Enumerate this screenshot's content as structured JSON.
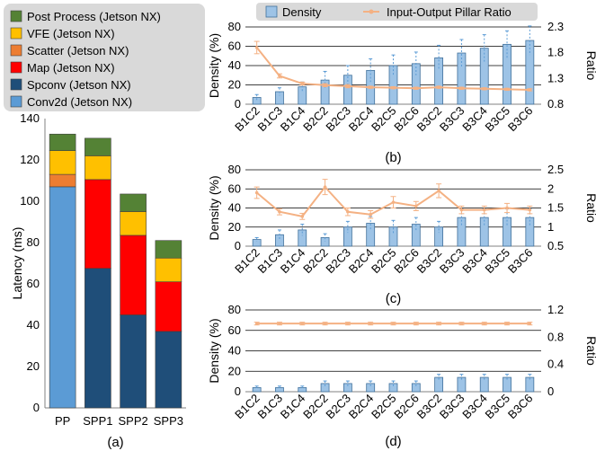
{
  "colors": {
    "conv2d": "#5b9bd5",
    "spconv": "#1f4e79",
    "map": "#ff0000",
    "scatter": "#ed7d31",
    "vfe": "#ffc000",
    "post": "#548235",
    "density_fill": "#9dc3e6",
    "density_edge": "#41719c",
    "ratio_line": "#f4b183",
    "errbar": "#5b9bd5",
    "legend_bg": "#d9d9d9"
  },
  "chart_data": [
    {
      "id": "a",
      "type": "bar",
      "stacked": true,
      "caption": "(a)",
      "ylabel": "Latency (ms)",
      "ylim": [
        0,
        140
      ],
      "yticks": [
        0,
        20,
        40,
        60,
        80,
        100,
        120,
        140
      ],
      "categories": [
        "PP",
        "SPP1",
        "SPP2",
        "SPP3"
      ],
      "legend_position": "top-left",
      "series": [
        {
          "name": "Conv2d (Jetson NX)",
          "color_key": "conv2d",
          "values": [
            107,
            0,
            0,
            0
          ]
        },
        {
          "name": "Spconv (Jetson NX)",
          "color_key": "spconv",
          "values": [
            0,
            67.5,
            45,
            37
          ]
        },
        {
          "name": "Map (Jetson NX)",
          "color_key": "map",
          "values": [
            0,
            43,
            38.5,
            24
          ]
        },
        {
          "name": "Scatter (Jetson NX)",
          "color_key": "scatter",
          "values": [
            6,
            0,
            0,
            0
          ]
        },
        {
          "name": "VFE (Jetson NX)",
          "color_key": "vfe",
          "values": [
            11.5,
            11.5,
            11.5,
            11.5
          ]
        },
        {
          "name": "Post Process (Jetson NX)",
          "color_key": "post",
          "values": [
            8,
            8.5,
            8.5,
            8.5
          ]
        }
      ]
    },
    {
      "id": "b",
      "type": "bar",
      "caption": "(b)",
      "ylabel": "Density (%)",
      "ylim": [
        0,
        80
      ],
      "yticks": [
        0,
        20,
        40,
        60,
        80
      ],
      "y2label": "Ratio",
      "y2lim": [
        0.8,
        2.3
      ],
      "y2ticks": [
        "0.8",
        "1.3",
        "1.8",
        "2.3"
      ],
      "legend_position": "top",
      "categories": [
        "B1C2",
        "B1C3",
        "B1C4",
        "B2C2",
        "B2C3",
        "B2C4",
        "B2C5",
        "B2C6",
        "B3C2",
        "B3C3",
        "B3C4",
        "B3C5",
        "B3C6"
      ],
      "density": {
        "name": "Density",
        "values": [
          7,
          13,
          18,
          25,
          30,
          35,
          40,
          42,
          48,
          53,
          58,
          62,
          66
        ],
        "errors": [
          3,
          4,
          5,
          9,
          10,
          12,
          11,
          12,
          13,
          14,
          14,
          14,
          15
        ]
      },
      "ratio": {
        "name": "Input-Output Pillar Ratio",
        "values": [
          1.9,
          1.35,
          1.2,
          1.17,
          1.15,
          1.13,
          1.12,
          1.11,
          1.13,
          1.11,
          1.1,
          1.09,
          1.08
        ],
        "errors": [
          0.12,
          0.04,
          0.03,
          0.03,
          0.03,
          0.02,
          0.02,
          0.02,
          0.02,
          0.02,
          0.02,
          0.02,
          0.02
        ]
      }
    },
    {
      "id": "c",
      "type": "bar",
      "caption": "(c)",
      "ylabel": "Density (%)",
      "ylim": [
        0,
        80
      ],
      "yticks": [
        0,
        20,
        40,
        60,
        80
      ],
      "y2label": "Ratio",
      "y2lim": [
        0.5,
        2.5
      ],
      "y2ticks": [
        "0.5",
        "1",
        "1.5",
        "2",
        "2.5"
      ],
      "categories": [
        "B1C2",
        "B1C3",
        "B1C4",
        "B2C2",
        "B2C3",
        "B2C4",
        "B2C5",
        "B2C6",
        "B3C2",
        "B3C3",
        "B3C4",
        "B3C5",
        "B3C6"
      ],
      "density": {
        "name": "Density",
        "values": [
          7,
          12,
          17,
          9,
          20,
          24,
          20,
          23,
          20,
          30,
          30,
          30,
          30
        ],
        "errors": [
          2,
          5,
          6,
          4,
          6,
          7,
          7,
          7,
          6,
          9,
          9,
          9,
          9
        ]
      },
      "ratio": {
        "name": "Input-Output Pillar Ratio",
        "values": [
          1.9,
          1.4,
          1.28,
          2.05,
          1.4,
          1.33,
          1.65,
          1.55,
          1.95,
          1.45,
          1.45,
          1.5,
          1.45
        ],
        "errors": [
          0.15,
          0.08,
          0.08,
          0.2,
          0.1,
          0.1,
          0.15,
          0.12,
          0.18,
          0.1,
          0.1,
          0.12,
          0.1
        ]
      }
    },
    {
      "id": "d",
      "type": "bar",
      "caption": "(d)",
      "ylabel": "Density (%)",
      "ylim": [
        0,
        80
      ],
      "yticks": [
        0,
        20,
        40,
        60,
        80
      ],
      "y2label": "Ratio",
      "y2lim": [
        0,
        1.2
      ],
      "y2ticks": [
        "0",
        "0.4",
        "0.8",
        "1.2"
      ],
      "categories": [
        "B1C2",
        "B1C3",
        "B1C4",
        "B2C2",
        "B2C3",
        "B2C4",
        "B2C5",
        "B2C6",
        "B3C2",
        "B3C3",
        "B3C4",
        "B3C5",
        "B3C6"
      ],
      "density": {
        "name": "Density",
        "values": [
          4,
          4,
          4,
          8,
          8,
          8,
          8,
          8,
          14,
          14,
          14,
          14,
          14
        ],
        "errors": [
          1.5,
          1.5,
          1.5,
          2.5,
          2.5,
          2.5,
          2.5,
          2.5,
          3,
          3,
          3,
          3,
          3
        ]
      },
      "ratio": {
        "name": "Input-Output Pillar Ratio",
        "values": [
          1,
          1,
          1,
          1,
          1,
          1,
          1,
          1,
          1,
          1,
          1,
          1,
          1
        ],
        "errors": [
          0.02,
          0.02,
          0.02,
          0.02,
          0.02,
          0.02,
          0.02,
          0.02,
          0.02,
          0.02,
          0.02,
          0.02,
          0.02
        ]
      }
    }
  ]
}
